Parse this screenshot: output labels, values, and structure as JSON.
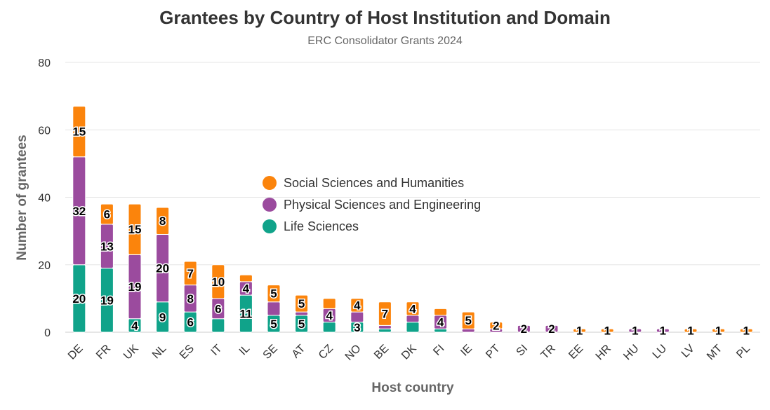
{
  "chart_data": {
    "type": "bar",
    "stacked": true,
    "title": "Grantees by Country of Host Institution and Domain",
    "subtitle": "ERC Consolidator Grants 2024",
    "xlabel": "Host country",
    "ylabel": "Number of grantees",
    "ylim": [
      0,
      80
    ],
    "yticks": [
      0,
      20,
      40,
      60,
      80
    ],
    "grid": true,
    "legend_position": "center",
    "categories": [
      "DE",
      "FR",
      "UK",
      "NL",
      "ES",
      "IT",
      "IL",
      "SE",
      "AT",
      "CZ",
      "NO",
      "BE",
      "DK",
      "FI",
      "IE",
      "PT",
      "SI",
      "TR",
      "EE",
      "HR",
      "HU",
      "LU",
      "LV",
      "MT",
      "PL"
    ],
    "series": [
      {
        "name": "Life Sciences",
        "color": "#10a38a",
        "values": [
          20,
          19,
          4,
          9,
          6,
          4,
          11,
          5,
          5,
          3,
          3,
          1,
          3,
          1,
          0,
          0,
          0,
          0,
          0,
          0,
          0,
          0,
          0,
          0,
          0
        ],
        "labels": [
          "20",
          "19",
          "4",
          "9",
          "6",
          "",
          "11",
          "5",
          "5",
          "",
          "3",
          "",
          "",
          "",
          "",
          "",
          "",
          "",
          "",
          "",
          "",
          "",
          "",
          "",
          ""
        ]
      },
      {
        "name": "Physical Sciences and Engineering",
        "color": "#9b4b9e",
        "values": [
          32,
          13,
          19,
          20,
          8,
          6,
          4,
          4,
          1,
          4,
          3,
          1,
          2,
          4,
          1,
          1,
          2,
          2,
          0,
          0,
          1,
          1,
          0,
          0,
          0
        ],
        "labels": [
          "32",
          "13",
          "19",
          "20",
          "8",
          "6",
          "4",
          "",
          "",
          "4",
          "",
          "",
          "",
          "4",
          "",
          "",
          "2",
          "2",
          "",
          "",
          "1",
          "1",
          "",
          "",
          ""
        ]
      },
      {
        "name": "Social Sciences and Humanities",
        "color": "#fb840c",
        "values": [
          15,
          6,
          15,
          8,
          7,
          10,
          2,
          5,
          5,
          3,
          4,
          7,
          4,
          2,
          5,
          2,
          0,
          0,
          1,
          1,
          0,
          0,
          1,
          1,
          1
        ],
        "labels": [
          "15",
          "6",
          "15",
          "8",
          "7",
          "10",
          "",
          "5",
          "5",
          "",
          "4",
          "7",
          "4",
          "",
          "5",
          "2",
          "",
          "",
          "1",
          "1",
          "",
          "",
          "1",
          "1",
          "1"
        ]
      }
    ]
  }
}
